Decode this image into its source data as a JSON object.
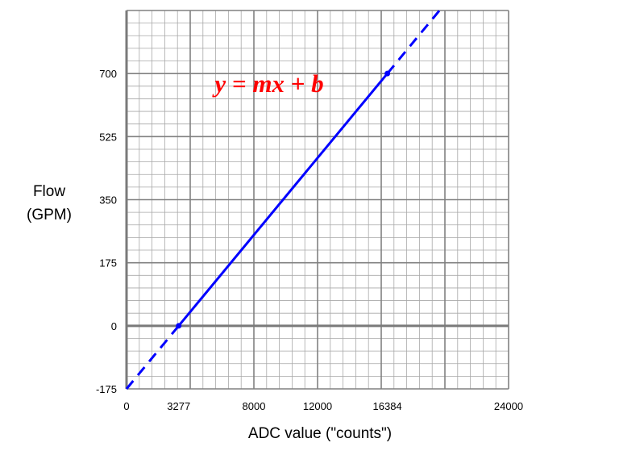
{
  "chart_data": {
    "type": "line",
    "annotation": "y = mx + b",
    "xlabel": "ADC value (\"counts\")",
    "ylabel_lines": [
      "Flow",
      "(GPM)"
    ],
    "xlim": [
      0,
      24000
    ],
    "ylim": [
      -175,
      875
    ],
    "x_ticks": [
      0,
      3277,
      8000,
      12000,
      16384,
      24000
    ],
    "y_ticks": [
      -175,
      0,
      175,
      350,
      525,
      700
    ],
    "x_tick_labels": [
      "0",
      "3277",
      "8000",
      "12000",
      "16384",
      "24000"
    ],
    "y_tick_labels": [
      "-175",
      "0",
      "175",
      "350",
      "525",
      "700"
    ],
    "grid": true,
    "line_color": "#0000ff",
    "annotation_color": "#ff0000",
    "series": [
      {
        "style": "solid",
        "x": [
          3277,
          16384
        ],
        "y": [
          0,
          700
        ]
      },
      {
        "style": "dashed",
        "x": [
          0,
          3277
        ],
        "y": [
          -175,
          0
        ]
      },
      {
        "style": "dashed",
        "x": [
          16384,
          19659
        ],
        "y": [
          700,
          875
        ]
      }
    ],
    "points": [
      {
        "x": 3277,
        "y": 0
      },
      {
        "x": 16384,
        "y": 700
      }
    ]
  }
}
